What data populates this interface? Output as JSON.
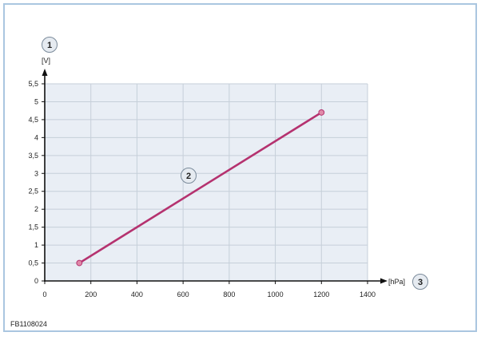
{
  "figure_id": "FB1108024",
  "colors": {
    "line": "#b5326f",
    "point": "#e08aa8",
    "grid": "#c6cfd9",
    "plot_bg": "#e9eef5",
    "frame": "#aac6e0"
  },
  "chart_data": {
    "type": "line",
    "title": "",
    "xlabel": "[hPa]",
    "ylabel": "[V]",
    "xlim": [
      0,
      1400
    ],
    "ylim": [
      0,
      5.5
    ],
    "x_ticks": [
      "0",
      "200",
      "400",
      "600",
      "800",
      "1000",
      "1200",
      "1400"
    ],
    "y_ticks": [
      "0",
      "0,5",
      "1",
      "1,5",
      "2",
      "2,5",
      "3",
      "3,5",
      "4",
      "4,5",
      "5",
      "5,5"
    ],
    "grid": true,
    "series": [
      {
        "x": [
          150,
          1200
        ],
        "y": [
          0.5,
          4.7
        ]
      }
    ],
    "callouts": {
      "y_axis": "1",
      "line": "2",
      "x_axis": "3"
    }
  }
}
